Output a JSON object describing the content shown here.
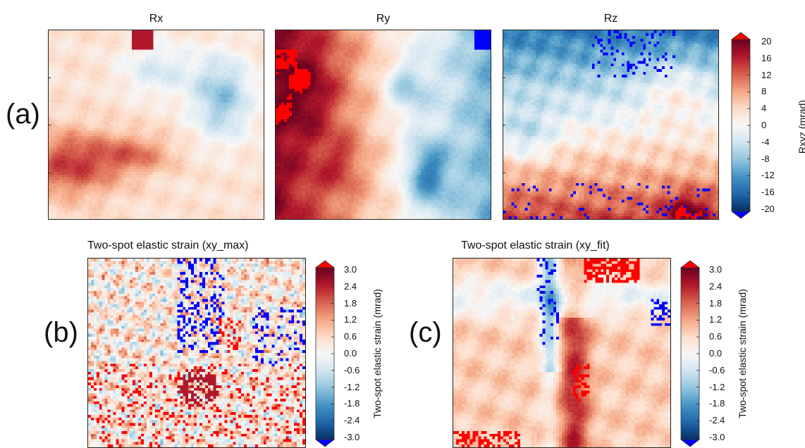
{
  "figure": {
    "row_a": {
      "label": "(a)",
      "panels": [
        {
          "key": "rx",
          "title": "Rx"
        },
        {
          "key": "ry",
          "title": "Ry"
        },
        {
          "key": "rz",
          "title": "Rz"
        }
      ],
      "colorbar": {
        "label": "Rxyz (mrad)",
        "ticks": [
          "20",
          "16",
          "12",
          "8",
          "4",
          "0",
          "-4",
          "-8",
          "-12",
          "-16",
          "-20"
        ]
      }
    },
    "panel_b": {
      "label": "(b)",
      "title": "Two-spot elastic strain (xy_max)",
      "colorbar": {
        "label": "Two-spot elastic strain (mrad)",
        "ticks": [
          "3.0",
          "2.4",
          "1.8",
          "1.2",
          "0.6",
          "0.0",
          "-0.6",
          "-1.2",
          "-1.8",
          "-2.4",
          "-3.0"
        ]
      }
    },
    "panel_c": {
      "label": "(c)",
      "title": "Two-spot elastic strain (xy_fit)",
      "colorbar": {
        "label": "Two-spot elastic strain (mrad)",
        "ticks": [
          "3.0",
          "2.4",
          "1.8",
          "1.2",
          "0.6",
          "0.0",
          "-0.6",
          "-1.2",
          "-1.8",
          "-2.4",
          "-3.0"
        ]
      }
    }
  },
  "colors": {
    "diverging": [
      "#053061",
      "#2166ac",
      "#4393c3",
      "#92c5de",
      "#d1e5f0",
      "#f7f7f7",
      "#fddbc7",
      "#f4a582",
      "#d6604d",
      "#b2182b",
      "#67001f"
    ],
    "over": "#ff0000",
    "under": "#0000ff"
  },
  "chart_data": [
    {
      "type": "heatmap",
      "title": "Rx",
      "colorbar_range": [
        -20,
        20
      ],
      "colorbar_label": "Rxyz (mrad)"
    },
    {
      "type": "heatmap",
      "title": "Ry",
      "colorbar_range": [
        -20,
        20
      ],
      "colorbar_label": "Rxyz (mrad)"
    },
    {
      "type": "heatmap",
      "title": "Rz",
      "colorbar_range": [
        -20,
        20
      ],
      "colorbar_label": "Rxyz (mrad)"
    },
    {
      "type": "heatmap",
      "title": "Two-spot elastic strain (xy_max)",
      "colorbar_range": [
        -3.0,
        3.0
      ],
      "colorbar_label": "Two-spot elastic strain (mrad)"
    },
    {
      "type": "heatmap",
      "title": "Two-spot elastic strain (xy_fit)",
      "colorbar_range": [
        -3.0,
        3.0
      ],
      "colorbar_label": "Two-spot elastic strain (mrad)"
    }
  ]
}
